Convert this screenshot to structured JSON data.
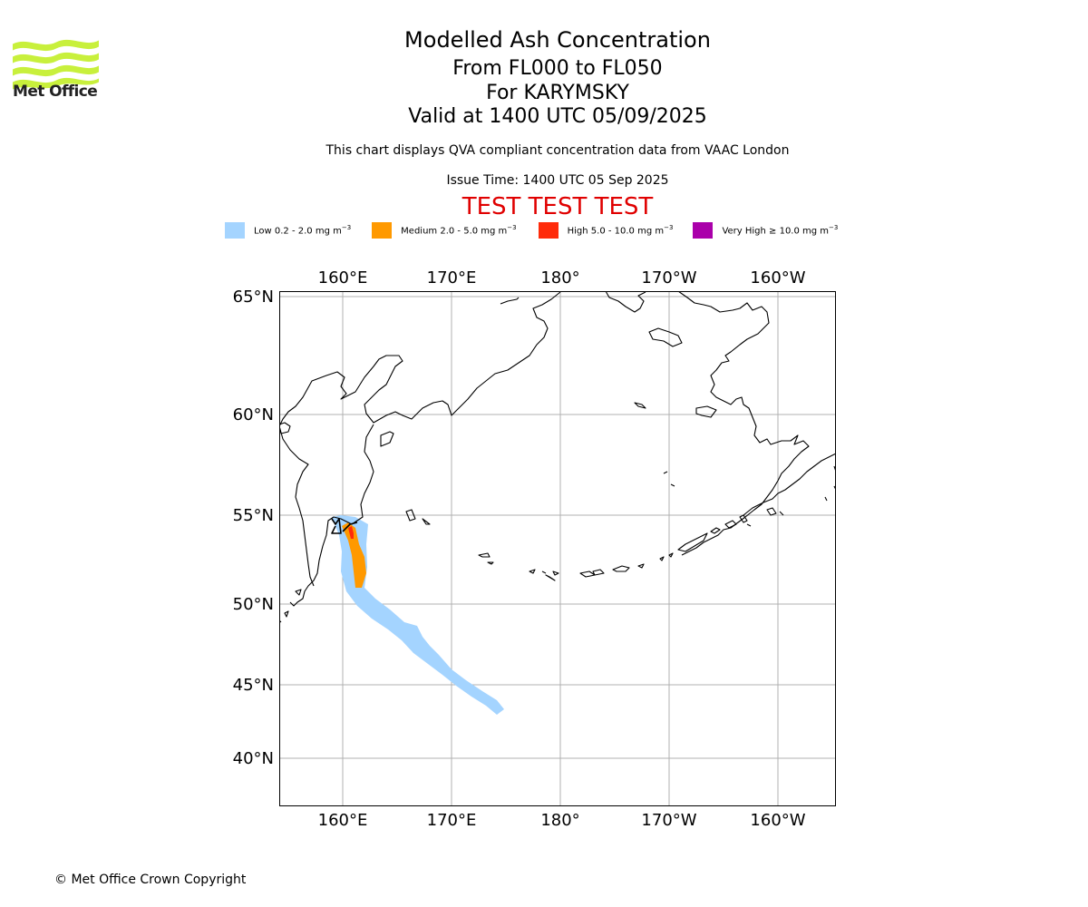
{
  "header": {
    "title": "Modelled Ash Concentration",
    "levels": "From FL000 to FL050",
    "volcano": "For KARYMSKY",
    "valid": "Valid at 1400 UTC 05/09/2025",
    "description": "This chart displays QVA compliant concentration data from VAAC London",
    "issue_time": "Issue Time: 1400 UTC 05 Sep 2025",
    "test_banner": "TEST TEST TEST"
  },
  "logo": {
    "text": "Met Office",
    "colors": {
      "waves": "#c8f03c",
      "text": "#222222"
    }
  },
  "legend": [
    {
      "label": "Low 0.2 - 2.0 mg m",
      "unit_exp": "−3",
      "color": "#a4d4ff"
    },
    {
      "label": "Medium 2.0 - 5.0 mg m",
      "unit_exp": "−3",
      "color": "#ff9900"
    },
    {
      "label": "High 5.0 - 10.0 mg m",
      "unit_exp": "−3",
      "color": "#ff2b0a"
    },
    {
      "label": "Very High  ≥  10.0 mg m",
      "unit_exp": "−3",
      "color": "#aa00aa"
    }
  ],
  "map": {
    "lon_ticks": [
      "160°E",
      "170°E",
      "180°",
      "170°W",
      "160°W"
    ],
    "lat_ticks": [
      "65°N",
      "60°N",
      "55°N",
      "50°N",
      "45°N",
      "40°N"
    ],
    "colors": {
      "grid": "#b0b0b0",
      "coast": "#000000",
      "low": "#a4d4ff",
      "medium": "#ff9900",
      "high": "#ff2b0a"
    }
  },
  "footer": {
    "copyright": "© Met Office Crown Copyright"
  }
}
